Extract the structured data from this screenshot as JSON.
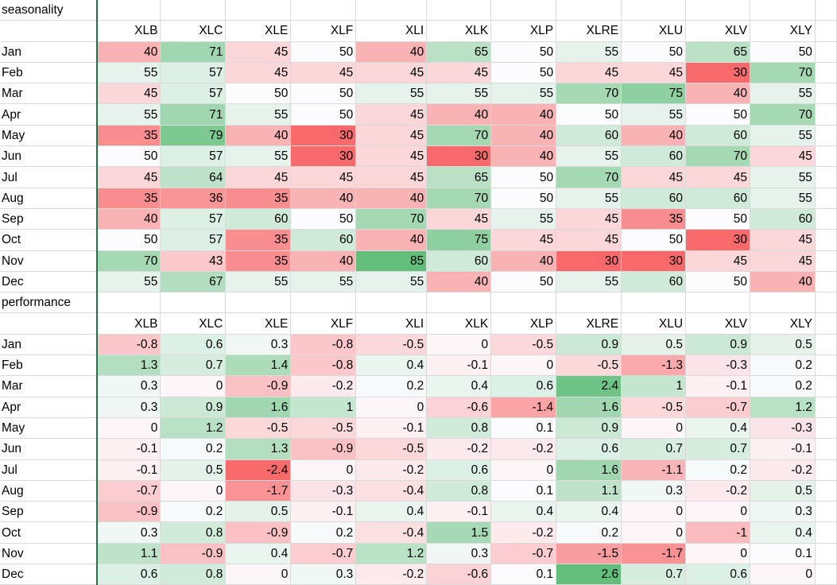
{
  "seasonality": {
    "title": "seasonality",
    "columns": [
      "XLB",
      "XLC",
      "XLE",
      "XLF",
      "XLI",
      "XLK",
      "XLP",
      "XLRE",
      "XLU",
      "XLV",
      "XLY"
    ],
    "rows": [
      {
        "month": "Jan",
        "values": [
          40,
          71,
          45,
          50,
          40,
          65,
          50,
          55,
          50,
          65,
          50
        ]
      },
      {
        "month": "Feb",
        "values": [
          55,
          57,
          45,
          45,
          45,
          45,
          50,
          45,
          45,
          30,
          70
        ]
      },
      {
        "month": "Mar",
        "values": [
          45,
          57,
          50,
          50,
          55,
          55,
          55,
          70,
          75,
          40,
          55
        ]
      },
      {
        "month": "Apr",
        "values": [
          55,
          71,
          55,
          50,
          45,
          40,
          40,
          50,
          55,
          50,
          70
        ]
      },
      {
        "month": "May",
        "values": [
          35,
          79,
          40,
          30,
          45,
          70,
          40,
          60,
          40,
          60,
          55
        ]
      },
      {
        "month": "Jun",
        "values": [
          50,
          57,
          55,
          30,
          45,
          30,
          40,
          55,
          60,
          70,
          45
        ]
      },
      {
        "month": "Jul",
        "values": [
          45,
          64,
          45,
          45,
          45,
          65,
          50,
          70,
          45,
          45,
          55
        ]
      },
      {
        "month": "Aug",
        "values": [
          35,
          36,
          35,
          40,
          40,
          70,
          50,
          55,
          60,
          60,
          55
        ]
      },
      {
        "month": "Sep",
        "values": [
          40,
          57,
          60,
          50,
          70,
          45,
          55,
          45,
          35,
          50,
          60
        ]
      },
      {
        "month": "Oct",
        "values": [
          50,
          57,
          35,
          60,
          40,
          75,
          45,
          45,
          50,
          30,
          45
        ]
      },
      {
        "month": "Nov",
        "values": [
          70,
          43,
          35,
          40,
          85,
          60,
          40,
          30,
          30,
          45,
          45
        ]
      },
      {
        "month": "Dec",
        "values": [
          55,
          67,
          55,
          55,
          55,
          40,
          50,
          55,
          60,
          50,
          40
        ]
      }
    ],
    "scale": {
      "min": 30,
      "mid": 50,
      "max": 85
    }
  },
  "performance": {
    "title": "performance",
    "columns": [
      "XLB",
      "XLC",
      "XLE",
      "XLF",
      "XLI",
      "XLK",
      "XLP",
      "XLRE",
      "XLU",
      "XLV",
      "XLY"
    ],
    "rows": [
      {
        "month": "Jan",
        "values": [
          -0.8,
          0.6,
          0.3,
          -0.8,
          -0.5,
          0,
          -0.5,
          0.9,
          0.5,
          0.9,
          0.5
        ]
      },
      {
        "month": "Feb",
        "values": [
          1.3,
          0.7,
          1.4,
          -0.8,
          0.4,
          -0.1,
          0,
          -0.5,
          -1.3,
          -0.3,
          0.2
        ]
      },
      {
        "month": "Mar",
        "values": [
          0.3,
          0,
          -0.9,
          -0.2,
          0.2,
          0.4,
          0.6,
          2.4,
          1,
          -0.1,
          0.2
        ]
      },
      {
        "month": "Apr",
        "values": [
          0.3,
          0.9,
          1.6,
          1,
          0,
          -0.6,
          -1.4,
          1.6,
          -0.5,
          -0.7,
          1.2
        ]
      },
      {
        "month": "May",
        "values": [
          0,
          1.2,
          -0.5,
          -0.5,
          -0.1,
          0.8,
          0.1,
          0.9,
          0,
          0.4,
          -0.3
        ]
      },
      {
        "month": "Jun",
        "values": [
          -0.1,
          0.2,
          1.3,
          -0.9,
          -0.5,
          -0.2,
          -0.2,
          0.6,
          0.7,
          0.7,
          -0.1
        ]
      },
      {
        "month": "Jul",
        "values": [
          -0.1,
          0.5,
          -2.4,
          0,
          -0.2,
          0.6,
          0,
          1.6,
          -1.1,
          0.2,
          -0.2
        ]
      },
      {
        "month": "Aug",
        "values": [
          -0.7,
          0,
          -1.7,
          -0.3,
          -0.4,
          0.8,
          0.1,
          1.1,
          0.3,
          -0.2,
          0.5
        ]
      },
      {
        "month": "Sep",
        "values": [
          -0.9,
          0.2,
          0.5,
          -0.1,
          0.4,
          -0.1,
          0.4,
          0.4,
          0,
          0,
          0.3
        ]
      },
      {
        "month": "Oct",
        "values": [
          0.3,
          0.8,
          -0.9,
          0.2,
          -0.4,
          1.5,
          -0.2,
          0.2,
          0,
          -1,
          0.4
        ]
      },
      {
        "month": "Nov",
        "values": [
          1.1,
          -0.9,
          0.4,
          -0.7,
          1.2,
          0.3,
          -0.7,
          -1.5,
          -1.7,
          0,
          0.1
        ]
      },
      {
        "month": "Dec",
        "values": [
          0.6,
          0.8,
          0,
          0.3,
          -0.2,
          -0.6,
          0.1,
          2.6,
          0.7,
          0.6,
          0
        ]
      }
    ],
    "scale": {
      "min": -2.4,
      "mid": 0.1,
      "max": 2.6
    }
  },
  "colors": {
    "low": "#F8696B",
    "mid": "#FCFCFF",
    "high": "#63BE7B",
    "gridline": "#DADADA",
    "frozen_line": "#217346"
  }
}
